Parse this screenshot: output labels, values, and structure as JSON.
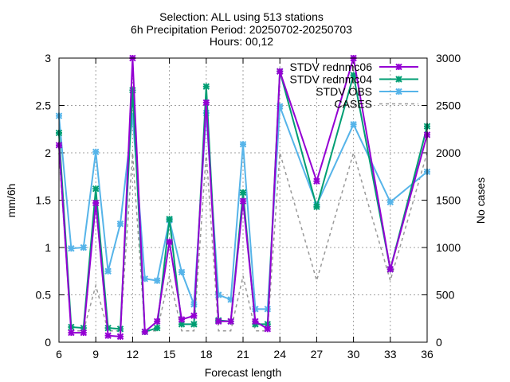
{
  "chart_data": {
    "type": "line",
    "title_lines": [
      "Selection: ALL using   513 stations",
      "6h Precipitation   Period: 20250702-20250703",
      "Hours: 00,12"
    ],
    "xlabel": "Forecast length",
    "ylabel": "mm/6h",
    "y2label": "No cases",
    "xlim": [
      6,
      36
    ],
    "ylim": [
      0,
      3
    ],
    "y2lim": [
      0,
      3000
    ],
    "xticks": [
      6,
      9,
      12,
      15,
      18,
      21,
      24,
      27,
      30,
      33,
      36
    ],
    "yticks": [
      "0",
      "0.5",
      "1",
      "1.5",
      "2",
      "2.5",
      "3"
    ],
    "y2ticks": [
      "0",
      "500",
      "1000",
      "1500",
      "2000",
      "2500",
      "3000"
    ],
    "grid": true,
    "legend_position": "top-right",
    "x": [
      6,
      7,
      8,
      9,
      10,
      11,
      12,
      13,
      14,
      15,
      16,
      17,
      18,
      19,
      20,
      21,
      22,
      23,
      24,
      27,
      30,
      33,
      36
    ],
    "series": [
      {
        "name": "STDV rednmc06",
        "color": "#9400d3",
        "marker": "cross",
        "axis": "y",
        "values": [
          2.08,
          0.1,
          0.1,
          1.47,
          0.07,
          0.06,
          3.0,
          0.11,
          0.22,
          1.06,
          0.24,
          0.28,
          2.53,
          0.22,
          0.22,
          1.49,
          0.22,
          0.14,
          2.86,
          1.7,
          3.0,
          0.77,
          2.19
        ]
      },
      {
        "name": "STDV rednmc04",
        "color": "#009e73",
        "marker": "cross",
        "axis": "y",
        "values": [
          2.21,
          0.16,
          0.15,
          1.62,
          0.15,
          0.14,
          2.66,
          0.11,
          0.15,
          1.3,
          0.19,
          0.19,
          2.7,
          0.23,
          0.22,
          1.58,
          0.19,
          0.19,
          2.86,
          1.43,
          2.82,
          0.77,
          2.28
        ]
      },
      {
        "name": "STDV OBS",
        "color": "#56b4e9",
        "marker": "cross",
        "axis": "y",
        "values": [
          2.39,
          0.99,
          1.0,
          2.01,
          0.75,
          1.25,
          2.39,
          0.67,
          0.65,
          1.29,
          0.74,
          0.4,
          2.42,
          0.5,
          0.45,
          2.09,
          0.35,
          0.35,
          2.49,
          1.45,
          2.3,
          1.48,
          1.8
        ]
      },
      {
        "name": "CASES",
        "color": "#999999",
        "dash": true,
        "axis": "y2",
        "values": [
          2000,
          120,
          120,
          600,
          120,
          120,
          2000,
          120,
          120,
          700,
          120,
          120,
          2000,
          120,
          120,
          700,
          120,
          120,
          2000,
          650,
          2000,
          650,
          2000
        ]
      }
    ]
  }
}
